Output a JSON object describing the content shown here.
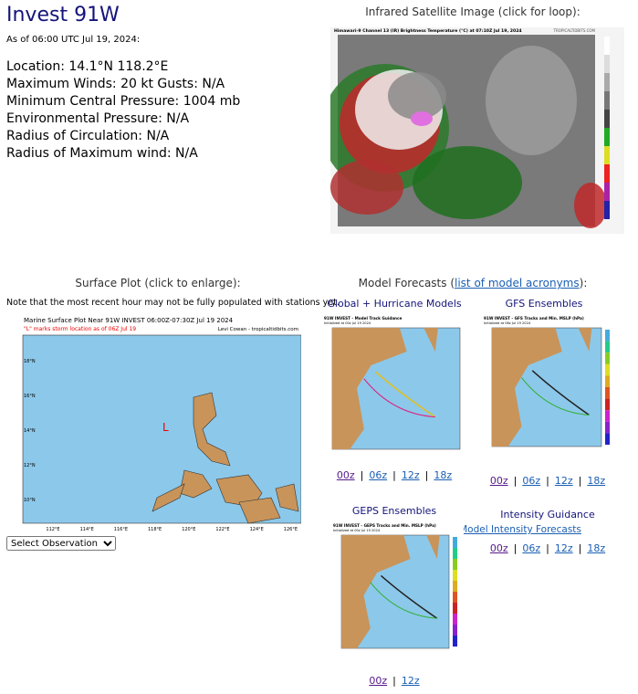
{
  "header": {
    "title": "Invest 91W",
    "as_of": "As of 06:00 UTC Jul 19, 2024:"
  },
  "details": [
    "Location: 14.1°N 118.2°E",
    "Maximum Winds: 20 kt  Gusts: N/A",
    "Minimum Central Pressure: 1004 mb",
    "Environmental Pressure: N/A",
    "Radius of Circulation: N/A",
    "Radius of Maximum wind: N/A"
  ],
  "satellite": {
    "heading": "Infrared Satellite Image (click for loop):",
    "image_title": "Himawari-9 Channel 13 (IR) Brightness Temperature (°C) at 07:10Z Jul 19, 2024",
    "credit": "TROPICALTIDBITS.COM"
  },
  "surface": {
    "heading": "Surface Plot (click to enlarge):",
    "note": "Note that the most recent hour may not be fully populated with stations yet.",
    "image_title": "Marine Surface Plot Near 91W INVEST 06:00Z-07:30Z Jul 19 2024",
    "image_subtitle": "\"L\" marks storm location as of 06Z Jul 19",
    "credit": "Levi Cowan - tropicaltidbits.com",
    "storm_marker": "L",
    "lat_labels": [
      "18°N",
      "16°N",
      "14°N",
      "12°N",
      "10°N"
    ],
    "lon_labels": [
      "112°E",
      "114°E",
      "116°E",
      "118°E",
      "120°E",
      "122°E",
      "124°E",
      "126°E"
    ],
    "select": "Select Observation Time..."
  },
  "models": {
    "heading_prefix": "Model Forecasts (",
    "heading_link": "list of model acronyms",
    "heading_suffix": "):",
    "separator": "|",
    "panels": [
      {
        "heading": "Global + Hurricane Models",
        "image_title": "91W INVEST - Model Track Guidance",
        "image_subtitle": "Initialized at 00z Jul 19 2024",
        "links": [
          "00z",
          "06z",
          "12z",
          "18z"
        ]
      },
      {
        "heading": "GFS Ensembles",
        "image_title": "91W INVEST - GFS Tracks and Min. MSLP (hPa)",
        "image_subtitle": "Initialized at 06z Jul 19 2024",
        "links": [
          "00z",
          "06z",
          "12z",
          "18z"
        ]
      },
      {
        "heading": "GEPS Ensembles",
        "image_title": "91W INVEST - GEPS Tracks and Min. MSLP (hPa)",
        "image_subtitle": "Initialized at 00z Jul 19 2024",
        "links": [
          "00z",
          "12z"
        ]
      }
    ],
    "intensity": {
      "heading": "Intensity Guidance",
      "link": "Model Intensity Forecasts",
      "links": [
        "00z",
        "06z",
        "12z",
        "18z"
      ]
    }
  }
}
